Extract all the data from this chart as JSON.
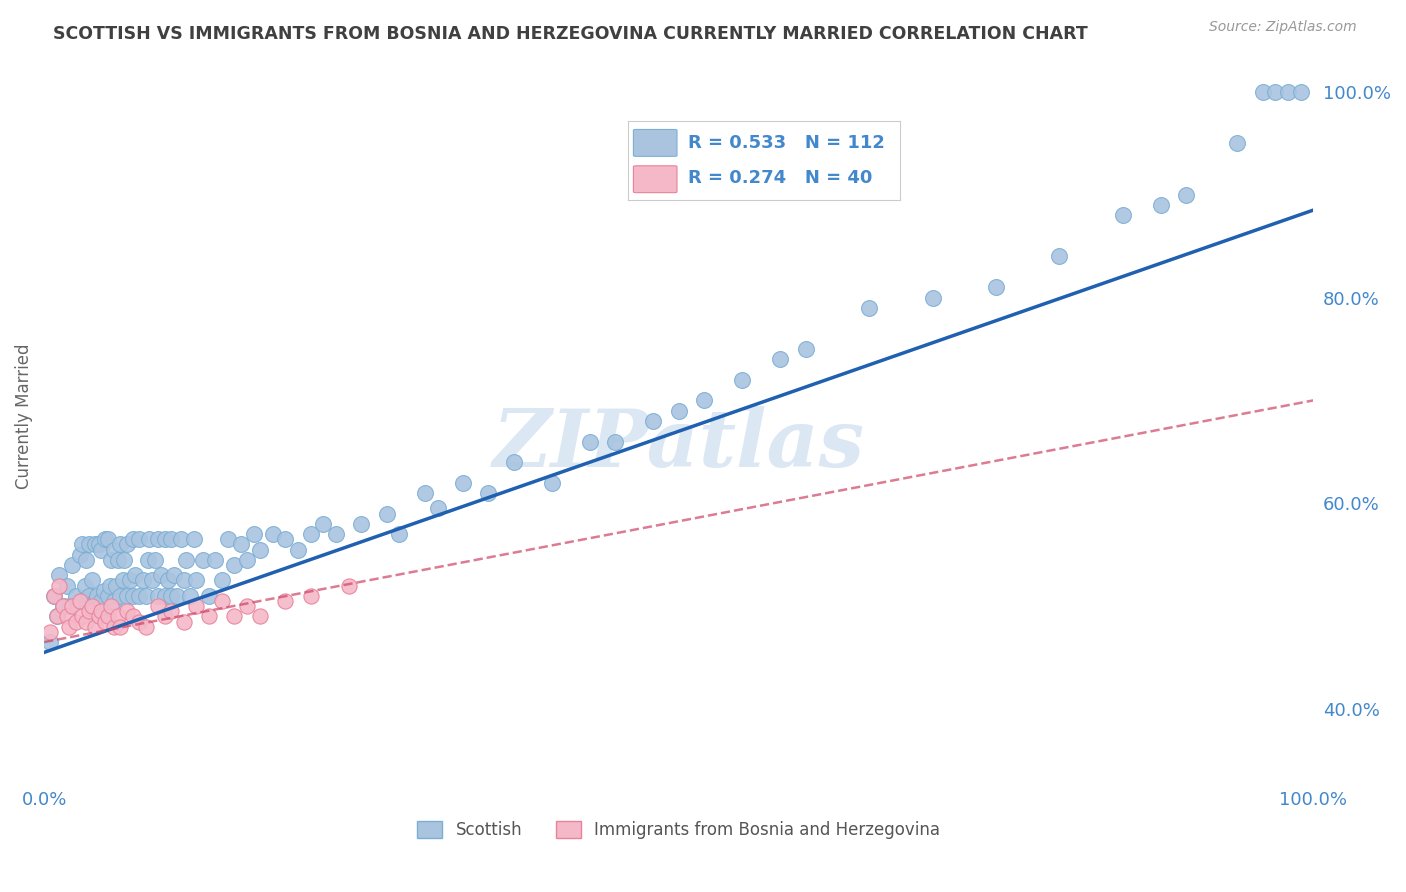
{
  "title": "SCOTTISH VS IMMIGRANTS FROM BOSNIA AND HERZEGOVINA CURRENTLY MARRIED CORRELATION CHART",
  "source": "Source: ZipAtlas.com",
  "ylabel": "Currently Married",
  "ylabel_right_ticks": [
    "40.0%",
    "60.0%",
    "80.0%",
    "100.0%"
  ],
  "ylabel_right_vals": [
    0.4,
    0.6,
    0.8,
    1.0
  ],
  "watermark": "ZIPatlas",
  "legend_blue_r": "R = 0.533",
  "legend_blue_n": "N = 112",
  "legend_pink_r": "R = 0.274",
  "legend_pink_n": "N = 40",
  "scatter_blue_color": "#aac4e0",
  "scatter_blue_edge": "#7aafd4",
  "scatter_pink_color": "#f5b8c8",
  "scatter_pink_edge": "#e8829a",
  "line_blue_color": "#2060b0",
  "line_pink_color": "#cc4466",
  "background_color": "#ffffff",
  "grid_color": "#cccccc",
  "title_color": "#404040",
  "axis_label_color": "#4488cc",
  "blue_scatter_x": [
    0.005,
    0.008,
    0.01,
    0.012,
    0.015,
    0.018,
    0.02,
    0.022,
    0.025,
    0.028,
    0.03,
    0.03,
    0.032,
    0.033,
    0.035,
    0.035,
    0.038,
    0.04,
    0.04,
    0.042,
    0.043,
    0.045,
    0.045,
    0.047,
    0.048,
    0.05,
    0.05,
    0.052,
    0.053,
    0.055,
    0.055,
    0.057,
    0.058,
    0.06,
    0.06,
    0.062,
    0.063,
    0.065,
    0.065,
    0.068,
    0.07,
    0.07,
    0.072,
    0.075,
    0.075,
    0.078,
    0.08,
    0.082,
    0.083,
    0.085,
    0.087,
    0.09,
    0.09,
    0.092,
    0.095,
    0.095,
    0.098,
    0.1,
    0.1,
    0.102,
    0.105,
    0.108,
    0.11,
    0.112,
    0.115,
    0.118,
    0.12,
    0.125,
    0.13,
    0.135,
    0.14,
    0.145,
    0.15,
    0.155,
    0.16,
    0.165,
    0.17,
    0.18,
    0.19,
    0.2,
    0.21,
    0.22,
    0.23,
    0.25,
    0.27,
    0.28,
    0.3,
    0.31,
    0.33,
    0.35,
    0.37,
    0.4,
    0.43,
    0.45,
    0.48,
    0.5,
    0.52,
    0.55,
    0.58,
    0.6,
    0.65,
    0.7,
    0.75,
    0.8,
    0.85,
    0.88,
    0.9,
    0.94,
    0.96,
    0.97,
    0.98,
    0.99
  ],
  "blue_scatter_y": [
    0.465,
    0.51,
    0.49,
    0.53,
    0.5,
    0.52,
    0.5,
    0.54,
    0.51,
    0.55,
    0.505,
    0.56,
    0.52,
    0.545,
    0.51,
    0.56,
    0.525,
    0.505,
    0.56,
    0.51,
    0.56,
    0.505,
    0.555,
    0.515,
    0.565,
    0.51,
    0.565,
    0.52,
    0.545,
    0.505,
    0.555,
    0.52,
    0.545,
    0.51,
    0.56,
    0.525,
    0.545,
    0.51,
    0.56,
    0.525,
    0.51,
    0.565,
    0.53,
    0.51,
    0.565,
    0.525,
    0.51,
    0.545,
    0.565,
    0.525,
    0.545,
    0.51,
    0.565,
    0.53,
    0.51,
    0.565,
    0.525,
    0.51,
    0.565,
    0.53,
    0.51,
    0.565,
    0.525,
    0.545,
    0.51,
    0.565,
    0.525,
    0.545,
    0.51,
    0.545,
    0.525,
    0.565,
    0.54,
    0.56,
    0.545,
    0.57,
    0.555,
    0.57,
    0.565,
    0.555,
    0.57,
    0.58,
    0.57,
    0.58,
    0.59,
    0.57,
    0.61,
    0.595,
    0.62,
    0.61,
    0.64,
    0.62,
    0.66,
    0.66,
    0.68,
    0.69,
    0.7,
    0.72,
    0.74,
    0.75,
    0.79,
    0.8,
    0.81,
    0.84,
    0.88,
    0.89,
    0.9,
    0.95,
    1.0,
    1.0,
    1.0,
    1.0
  ],
  "pink_scatter_x": [
    0.005,
    0.008,
    0.01,
    0.012,
    0.015,
    0.018,
    0.02,
    0.022,
    0.025,
    0.028,
    0.03,
    0.033,
    0.035,
    0.038,
    0.04,
    0.043,
    0.045,
    0.048,
    0.05,
    0.053,
    0.055,
    0.058,
    0.06,
    0.065,
    0.07,
    0.075,
    0.08,
    0.09,
    0.095,
    0.1,
    0.11,
    0.12,
    0.13,
    0.14,
    0.15,
    0.16,
    0.17,
    0.19,
    0.21,
    0.24
  ],
  "pink_scatter_y": [
    0.475,
    0.51,
    0.49,
    0.52,
    0.5,
    0.49,
    0.48,
    0.5,
    0.485,
    0.505,
    0.49,
    0.485,
    0.495,
    0.5,
    0.48,
    0.49,
    0.495,
    0.485,
    0.49,
    0.5,
    0.48,
    0.49,
    0.48,
    0.495,
    0.49,
    0.485,
    0.48,
    0.5,
    0.49,
    0.495,
    0.485,
    0.5,
    0.49,
    0.505,
    0.49,
    0.5,
    0.49,
    0.505,
    0.51,
    0.52
  ],
  "blue_line_x": [
    0.0,
    1.0
  ],
  "blue_line_y": [
    0.455,
    0.885
  ],
  "pink_line_x": [
    0.0,
    1.0
  ],
  "pink_line_y": [
    0.465,
    0.7
  ],
  "xlim": [
    0.0,
    1.0
  ],
  "ylim": [
    0.33,
    1.04
  ],
  "xticks": [
    0.0,
    0.25,
    0.5,
    0.75,
    1.0
  ],
  "xtick_labels": [
    "0.0%",
    "",
    "",
    "",
    "100.0%"
  ]
}
